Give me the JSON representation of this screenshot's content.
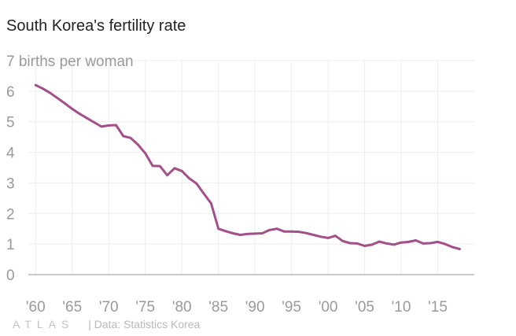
{
  "chart_data": {
    "type": "line",
    "title": "South Korea's fertility rate",
    "y_unit_label": "births per woman",
    "xlabel": "",
    "ylabel": "",
    "xlim": [
      1959,
      2020
    ],
    "ylim": [
      0,
      7
    ],
    "yticks": [
      0,
      1,
      2,
      3,
      4,
      5,
      6,
      7
    ],
    "xticks": [
      1960,
      1965,
      1970,
      1975,
      1980,
      1985,
      1990,
      1995,
      2000,
      2005,
      2010,
      2015
    ],
    "xtick_labels": [
      "'60",
      "'65",
      "'70",
      "'75",
      "'80",
      "'85",
      "'90",
      "'95",
      "'00",
      "'05",
      "'10",
      "'15"
    ],
    "grid": true,
    "color": "#a24f8a",
    "series": [
      {
        "x": [
          1960,
          1961,
          1962,
          1963,
          1964,
          1965,
          1966,
          1967,
          1968,
          1969,
          1970,
          1971,
          1972,
          1973,
          1974,
          1975,
          1976,
          1977,
          1978,
          1979,
          1980,
          1981,
          1982,
          1983,
          1984,
          1985,
          1986,
          1987,
          1988,
          1989,
          1990,
          1991,
          1992,
          1993,
          1994,
          1995,
          1996,
          1997,
          1998,
          1999,
          2000,
          2001,
          2002,
          2003,
          2004,
          2005,
          2006,
          2007,
          2008,
          2009,
          2010,
          2011,
          2012,
          2013,
          2014,
          2015,
          2016,
          2017,
          2018
        ],
        "y": [
          6.2,
          6.08,
          5.94,
          5.77,
          5.6,
          5.42,
          5.26,
          5.12,
          4.98,
          4.84,
          4.88,
          4.89,
          4.53,
          4.47,
          4.25,
          3.97,
          3.56,
          3.55,
          3.25,
          3.48,
          3.39,
          3.15,
          2.98,
          2.65,
          2.33,
          1.5,
          1.42,
          1.35,
          1.3,
          1.33,
          1.34,
          1.35,
          1.46,
          1.5,
          1.41,
          1.41,
          1.4,
          1.36,
          1.3,
          1.24,
          1.2,
          1.27,
          1.1,
          1.03,
          1.02,
          0.94,
          0.98,
          1.08,
          1.02,
          0.98,
          1.05,
          1.07,
          1.12,
          1.02,
          1.03,
          1.07,
          1.0,
          0.9,
          0.84
        ]
      }
    ]
  },
  "footer": {
    "logo_text": "ATLAS",
    "source_text": "| Data: Statistics Korea"
  }
}
